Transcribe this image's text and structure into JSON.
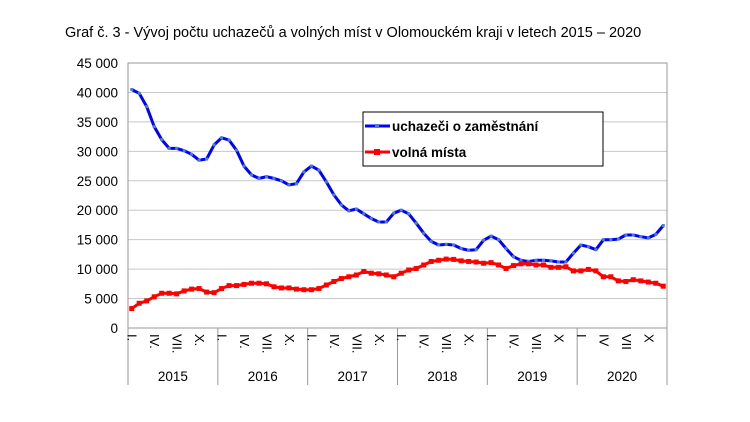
{
  "chart_data": {
    "type": "line",
    "title": "Graf č. 3 - Vývoj počtu uchazečů a volných míst v Olomouckém kraji v letech 2015 – 2020",
    "ylim": [
      0,
      45000
    ],
    "y_ticks": [
      "0",
      "5 000",
      "10 000",
      "15 000",
      "20 000",
      "25 000",
      "30 000",
      "35 000",
      "40 000",
      "45 000"
    ],
    "grid": true,
    "legend_placement": "upper-center-right",
    "years": [
      "2015",
      "2016",
      "2017",
      "2018",
      "2019",
      "2020"
    ],
    "month_labels": [
      [
        "I.",
        "IV.",
        "VII.",
        "X."
      ],
      [
        "I.",
        "IV.",
        "VII.",
        "X."
      ],
      [
        "I.",
        "IV.",
        "VII.",
        "X."
      ],
      [
        "I.",
        "IV.",
        "VII.",
        "X."
      ],
      [
        "I.",
        "IV.",
        "VII.",
        "X"
      ],
      [
        "I",
        "IV",
        "VII",
        "X"
      ]
    ],
    "series": [
      {
        "name": "uchazeči o zaměstnání",
        "color": "#0000ff",
        "marker_color": "#4a7fc8",
        "values": [
          40500,
          39850,
          37600,
          34200,
          32000,
          30500,
          30500,
          30100,
          29500,
          28500,
          28700,
          31100,
          32300,
          31900,
          30200,
          27500,
          26000,
          25400,
          25700,
          25400,
          25000,
          24300,
          24500,
          26500,
          27500,
          26800,
          24800,
          22600,
          20900,
          19900,
          20200,
          19400,
          18600,
          18000,
          18000,
          19500,
          20000,
          19400,
          17800,
          16100,
          14700,
          14100,
          14200,
          14100,
          13500,
          13200,
          13300,
          14900,
          15600,
          15000,
          13500,
          12100,
          11500,
          11300,
          11500,
          11500,
          11400,
          11200,
          11200,
          12700,
          14100,
          13800,
          13300,
          15000,
          15000,
          15100,
          15800,
          15800,
          15500,
          15300,
          15900,
          17400
        ]
      },
      {
        "name": "volná místa",
        "color": "#ff0000",
        "marker_color": "#ff0000",
        "values": [
          3300,
          4200,
          4600,
          5300,
          5900,
          5900,
          5800,
          6300,
          6600,
          6700,
          6100,
          6000,
          6700,
          7200,
          7200,
          7400,
          7600,
          7600,
          7500,
          7000,
          6800,
          6800,
          6600,
          6500,
          6500,
          6700,
          7300,
          7900,
          8400,
          8700,
          9000,
          9600,
          9300,
          9200,
          9000,
          8700,
          9300,
          9850,
          10100,
          10700,
          11300,
          11500,
          11700,
          11650,
          11400,
          11300,
          11200,
          11000,
          11100,
          10700,
          10100,
          10600,
          10900,
          10900,
          10700,
          10700,
          10300,
          10300,
          10400,
          9700,
          9700,
          9950,
          9700,
          8700,
          8700,
          8000,
          7900,
          8200,
          8000,
          7800,
          7600,
          7100
        ]
      }
    ]
  }
}
